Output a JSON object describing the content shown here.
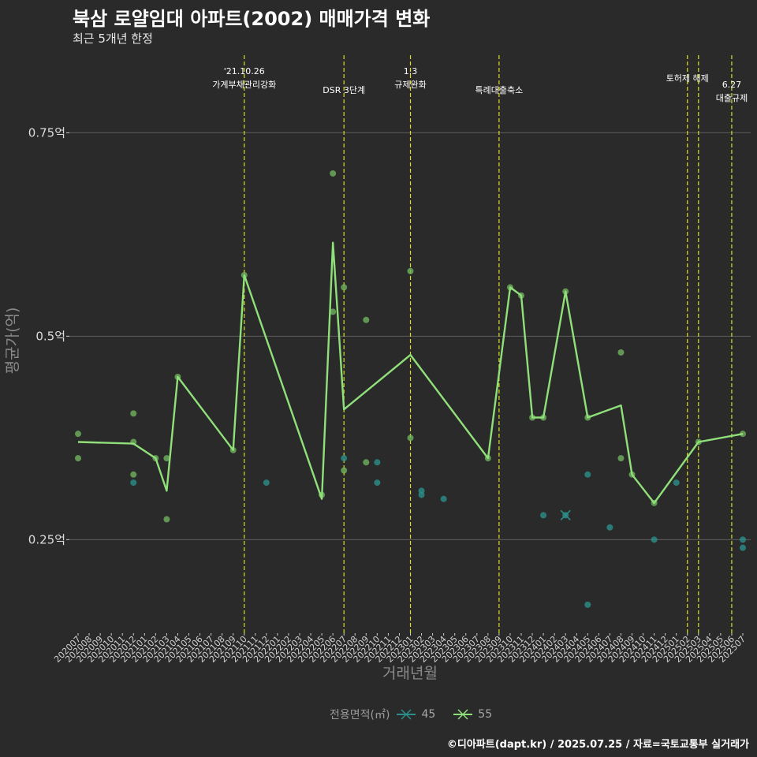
{
  "header": {
    "title": "북삼 로얄임대 아파트(2002) 매매가격 변화",
    "subtitle": "최근 5개년 한정"
  },
  "footer": "©디아파트(dapt.kr) / 2025.07.25 / 자료=국토교통부 실거래가",
  "legend": {
    "title": "전용면적(㎡)",
    "items": [
      {
        "label": "45",
        "color": "#2a8f8a"
      },
      {
        "label": "55",
        "color": "#90e07a"
      }
    ]
  },
  "colors": {
    "background": "#2b2a2b",
    "grid": "#5e5e5e",
    "event_line": "#d8e020",
    "series_45": "#2a8f8a",
    "series_55": "#90e07a",
    "series_55_points": "#6fb35e"
  },
  "chart_data": {
    "type": "line",
    "title": "북삼 로얄임대 아파트(2002) 매매가격 변화",
    "subtitle": "최근 5개년 한정",
    "xlabel": "거래년월",
    "ylabel": "평균가(억)",
    "categories": [
      "202007",
      "202008",
      "202009",
      "202010",
      "202011",
      "202012",
      "202101",
      "202102",
      "202103",
      "202104",
      "202105",
      "202106",
      "202107",
      "202108",
      "202109",
      "202110",
      "202111",
      "202112",
      "202201",
      "202202",
      "202203",
      "202204",
      "202205",
      "202206",
      "202207",
      "202208",
      "202209",
      "202210",
      "202211",
      "202212",
      "202301",
      "202302",
      "202303",
      "202304",
      "202305",
      "202306",
      "202307",
      "202308",
      "202309",
      "202310",
      "202311",
      "202312",
      "202401",
      "202402",
      "202403",
      "202404",
      "202405",
      "202406",
      "202407",
      "202408",
      "202409",
      "202410",
      "202411",
      "202412",
      "202501",
      "202502",
      "202503",
      "202504",
      "202505",
      "202506",
      "202507"
    ],
    "y_ticks": [
      {
        "value": 0.25,
        "label": "0.25억"
      },
      {
        "value": 0.5,
        "label": "0.5억"
      },
      {
        "value": 0.75,
        "label": "0.75억"
      }
    ],
    "ylim": [
      0.135,
      0.855
    ],
    "grid": true,
    "legend_position": "bottom",
    "events": [
      {
        "x": "202110",
        "label": [
          "'21.10.26",
          "가계부채관리강화"
        ],
        "row": 0
      },
      {
        "x": "202207",
        "label": [
          "DSR 3단계"
        ],
        "row": 1
      },
      {
        "x": "202301",
        "label": [
          "1.3",
          "규제완화"
        ],
        "row": 0
      },
      {
        "x": "202309",
        "label": [
          "특례대출축소"
        ],
        "row": 1
      },
      {
        "x": "202502",
        "label": [
          "토허제 해제"
        ],
        "row": 0
      },
      {
        "x": "202503",
        "label": [],
        "row": 0
      },
      {
        "x": "202506",
        "label": [
          "6.27",
          "대출규제"
        ],
        "row": 1
      }
    ],
    "series": [
      {
        "name": "45",
        "line": [
          {
            "x": "202403",
            "y": 0.28
          }
        ],
        "points": [
          {
            "x": "202012",
            "y": 0.32
          },
          {
            "x": "202112",
            "y": 0.32
          },
          {
            "x": "202207",
            "y": 0.35
          },
          {
            "x": "202210",
            "y": 0.345
          },
          {
            "x": "202210",
            "y": 0.32
          },
          {
            "x": "202302",
            "y": 0.31
          },
          {
            "x": "202302",
            "y": 0.305
          },
          {
            "x": "202304",
            "y": 0.3
          },
          {
            "x": "202401",
            "y": 0.28
          },
          {
            "x": "202403",
            "y": 0.28
          },
          {
            "x": "202405",
            "y": 0.33
          },
          {
            "x": "202405",
            "y": 0.17
          },
          {
            "x": "202407",
            "y": 0.265
          },
          {
            "x": "202411",
            "y": 0.25
          },
          {
            "x": "202501",
            "y": 0.32
          },
          {
            "x": "202507",
            "y": 0.25
          },
          {
            "x": "202507",
            "y": 0.24
          }
        ]
      },
      {
        "name": "55",
        "line": [
          {
            "x": "202007",
            "y": 0.37
          },
          {
            "x": "202012",
            "y": 0.368
          },
          {
            "x": "202102",
            "y": 0.35
          },
          {
            "x": "202103",
            "y": 0.31
          },
          {
            "x": "202104",
            "y": 0.45
          },
          {
            "x": "202109",
            "y": 0.36
          },
          {
            "x": "202110",
            "y": 0.575
          },
          {
            "x": "202205",
            "y": 0.3
          },
          {
            "x": "202206",
            "y": 0.615
          },
          {
            "x": "202207",
            "y": 0.41
          },
          {
            "x": "202301",
            "y": 0.477
          },
          {
            "x": "202308",
            "y": 0.35
          },
          {
            "x": "202310",
            "y": 0.56
          },
          {
            "x": "202311",
            "y": 0.55
          },
          {
            "x": "202312",
            "y": 0.4
          },
          {
            "x": "202401",
            "y": 0.4
          },
          {
            "x": "202403",
            "y": 0.555
          },
          {
            "x": "202405",
            "y": 0.4
          },
          {
            "x": "202408",
            "y": 0.415
          },
          {
            "x": "202409",
            "y": 0.33
          },
          {
            "x": "202411",
            "y": 0.295
          },
          {
            "x": "202503",
            "y": 0.37
          },
          {
            "x": "202507",
            "y": 0.38
          }
        ],
        "points": [
          {
            "x": "202007",
            "y": 0.38
          },
          {
            "x": "202007",
            "y": 0.35
          },
          {
            "x": "202012",
            "y": 0.405
          },
          {
            "x": "202012",
            "y": 0.37
          },
          {
            "x": "202012",
            "y": 0.33
          },
          {
            "x": "202102",
            "y": 0.35
          },
          {
            "x": "202103",
            "y": 0.35
          },
          {
            "x": "202103",
            "y": 0.275
          },
          {
            "x": "202104",
            "y": 0.45
          },
          {
            "x": "202109",
            "y": 0.36
          },
          {
            "x": "202110",
            "y": 0.575
          },
          {
            "x": "202205",
            "y": 0.305
          },
          {
            "x": "202206",
            "y": 0.7
          },
          {
            "x": "202206",
            "y": 0.53
          },
          {
            "x": "202207",
            "y": 0.56
          },
          {
            "x": "202207",
            "y": 0.335
          },
          {
            "x": "202209",
            "y": 0.52
          },
          {
            "x": "202209",
            "y": 0.345
          },
          {
            "x": "202301",
            "y": 0.58
          },
          {
            "x": "202301",
            "y": 0.375
          },
          {
            "x": "202308",
            "y": 0.35
          },
          {
            "x": "202310",
            "y": 0.56
          },
          {
            "x": "202311",
            "y": 0.55
          },
          {
            "x": "202312",
            "y": 0.4
          },
          {
            "x": "202401",
            "y": 0.4
          },
          {
            "x": "202403",
            "y": 0.555
          },
          {
            "x": "202405",
            "y": 0.4
          },
          {
            "x": "202408",
            "y": 0.48
          },
          {
            "x": "202408",
            "y": 0.35
          },
          {
            "x": "202409",
            "y": 0.33
          },
          {
            "x": "202411",
            "y": 0.295
          },
          {
            "x": "202503",
            "y": 0.37
          },
          {
            "x": "202507",
            "y": 0.38
          }
        ]
      }
    ]
  }
}
